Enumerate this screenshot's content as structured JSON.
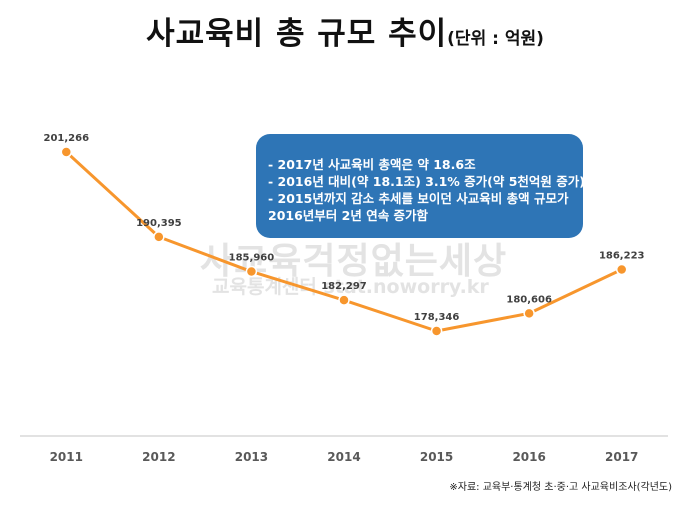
{
  "title": {
    "main": "사교육비 총 규모 추이",
    "unit": "(단위 : 억원)"
  },
  "callout": {
    "lines": [
      "- 2017년 사교육비 총액은 약 18.6조",
      "- 2016년 대비(약 18.1조) 3.1% 증가(약 5천억원 증가)",
      "- 2015년까지 감소 추세를 보이던 사교육비 총액 규모가",
      "2016년부터 2년 연속 증가함"
    ]
  },
  "watermark": {
    "line1": "사교육걱정없는세상",
    "line2": "교육통계센터 stat.noworry.kr"
  },
  "source": "※자료: 교육부·통계청 초·중·고 사교육비조사(각년도)",
  "chart_data": {
    "type": "line",
    "title": "사교육비 총 규모 추이",
    "subtitle": "(단위 : 억원)",
    "categories": [
      "2011",
      "2012",
      "2013",
      "2014",
      "2015",
      "2016",
      "2017"
    ],
    "series": [
      {
        "values": [
          201266,
          190395,
          185960,
          182297,
          178346,
          180606,
          186223
        ]
      }
    ],
    "data_labels": [
      "201,266",
      "190,395",
      "185,960",
      "182,297",
      "178,346",
      "180,606",
      "186,223"
    ],
    "ylim": [
      150000,
      210000
    ],
    "grid": false,
    "legend": "none",
    "colors": {
      "line": "#f7962d",
      "marker_fill": "#f7962d",
      "axis": "#d9d9d9",
      "label": "#404040"
    }
  }
}
